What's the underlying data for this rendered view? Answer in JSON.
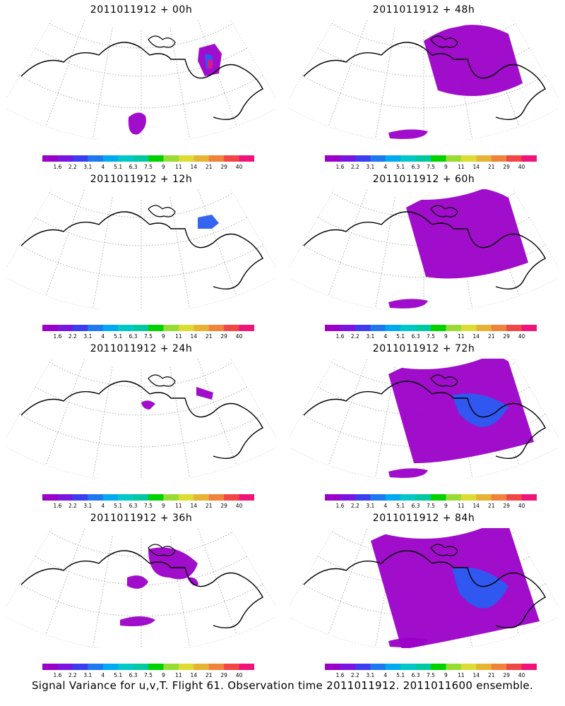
{
  "footer": "Signal Variance for u,v,T. Flight 61. Observation time 2011011912. 2011011600 ensemble.",
  "colorbar": {
    "labels": [
      "1.6",
      "2.2",
      "3.1",
      "4",
      "5.1",
      "6.3",
      "7.5",
      "9",
      "11",
      "14",
      "21",
      "29",
      "40"
    ],
    "colors": [
      "#9b00c8",
      "#7a14e0",
      "#3c3cf0",
      "#1e78f0",
      "#00aaf0",
      "#00c8c8",
      "#00c8a0",
      "#00d200",
      "#96dc32",
      "#dcdc32",
      "#e6b432",
      "#f0823c",
      "#f04646",
      "#f0147a"
    ]
  },
  "panels": [
    {
      "title": "2011011912 + 00h",
      "level": 0
    },
    {
      "title": "2011011912 + 48h",
      "level": 4
    },
    {
      "title": "2011011912 + 12h",
      "level": 1
    },
    {
      "title": "2011011912 + 60h",
      "level": 5
    },
    {
      "title": "2011011912 + 24h",
      "level": 2
    },
    {
      "title": "2011011912 + 72h",
      "level": 6
    },
    {
      "title": "2011011912 + 36h",
      "level": 3
    },
    {
      "title": "2011011912 + 84h",
      "level": 7
    }
  ]
}
